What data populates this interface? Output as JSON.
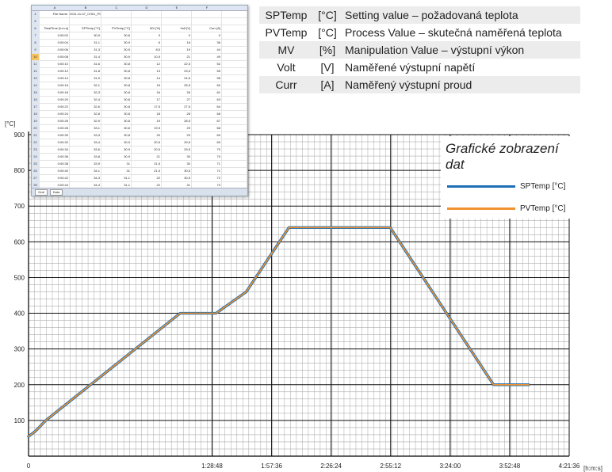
{
  "spreadsheet": {
    "file_label": "File Name:",
    "file_name": "2011-11-07_CH01_P02",
    "columns": [
      "A",
      "B",
      "C",
      "D",
      "E",
      "F"
    ],
    "headers": [
      "RealTime [h:m:s]",
      "SPTemp [°C]",
      "PVTemp [°C]",
      "MV [%]",
      "Volt [V]",
      "Curr [A]"
    ],
    "rows": [
      [
        "0:00:02",
        "30,9",
        "30,8",
        "3",
        "0",
        "0"
      ],
      [
        "0:00:04",
        "31,1",
        "30,9",
        "6",
        "16",
        "36"
      ],
      [
        "0:00:06",
        "31,3",
        "30,9",
        "8,5",
        "19",
        "44"
      ],
      [
        "0:00:08",
        "31,4",
        "30,9",
        "10,5",
        "21",
        "49"
      ],
      [
        "0:00:10",
        "31,6",
        "30,8",
        "12",
        "22,5",
        "52"
      ],
      [
        "0:00:12",
        "31,8",
        "30,8",
        "13",
        "23,5",
        "55"
      ],
      [
        "0:00:14",
        "31,9",
        "30,8",
        "14",
        "24,5",
        "58"
      ],
      [
        "0:00:16",
        "32,1",
        "30,8",
        "15",
        "25,5",
        "60"
      ],
      [
        "0:00:18",
        "32,3",
        "30,8",
        "16",
        "26",
        "61"
      ],
      [
        "0:00:20",
        "32,4",
        "30,8",
        "17",
        "27",
        "63"
      ],
      [
        "0:00:22",
        "32,6",
        "30,8",
        "17,5",
        "27,5",
        "64"
      ],
      [
        "0:00:24",
        "32,8",
        "30,8",
        "18",
        "28",
        "66"
      ],
      [
        "0:00:26",
        "32,9",
        "30,8",
        "19",
        "28,5",
        "67"
      ],
      [
        "0:00:28",
        "33,1",
        "30,8",
        "19,5",
        "29",
        "68"
      ],
      [
        "0:00:30",
        "33,3",
        "30,8",
        "20",
        "29",
        "69"
      ],
      [
        "0:00:32",
        "33,4",
        "30,9",
        "20,5",
        "29,5",
        "69"
      ],
      [
        "0:00:34",
        "33,6",
        "30,9",
        "20,5",
        "29,5",
        "70"
      ],
      [
        "0:00:36",
        "33,8",
        "30,9",
        "21",
        "30",
        "70"
      ],
      [
        "0:00:38",
        "33,9",
        "31",
        "21,5",
        "30",
        "71"
      ],
      [
        "0:00:40",
        "34,1",
        "31",
        "21,5",
        "30,5",
        "71"
      ],
      [
        "0:00:42",
        "34,3",
        "31,1",
        "22",
        "30,5",
        "72"
      ],
      [
        "0:00:44",
        "34,4",
        "31,1",
        "22",
        "31",
        "73"
      ]
    ],
    "tabs": [
      "Graf",
      "Data"
    ]
  },
  "variables": [
    {
      "name": "SPTemp",
      "unit": "[°C]",
      "desc": "Setting value – požadovaná teplota"
    },
    {
      "name": "PVTemp",
      "unit": "[°C]",
      "desc": "Process Value – skutečná naměřená teplota"
    },
    {
      "name": "MV",
      "unit": "[%]",
      "desc": "Manipulation Value – výstupní výkon"
    },
    {
      "name": "Volt",
      "unit": "[V]",
      "desc": "Naměřené výstupní napětí"
    },
    {
      "name": "Curr",
      "unit": "[A]",
      "desc": "Naměřený výstupní proud"
    }
  ],
  "chart_data": {
    "type": "line",
    "title": "Grafické zobrazení dat",
    "ylabel": "[°C]",
    "xlabel": "[h:m:s]",
    "ylim": [
      0,
      900
    ],
    "xlim_seconds": [
      0,
      15696
    ],
    "y_ticks": [
      100,
      200,
      300,
      400,
      500,
      600,
      700,
      800,
      900
    ],
    "x_ticks": [
      {
        "label": "0",
        "seconds": 0
      },
      {
        "label": "1:28:48",
        "seconds": 5328
      },
      {
        "label": "1:57:36",
        "seconds": 7056
      },
      {
        "label": "2:26:24",
        "seconds": 8784
      },
      {
        "label": "2:55:12",
        "seconds": 10512
      },
      {
        "label": "3:24:00",
        "seconds": 12240
      },
      {
        "label": "3:52:48",
        "seconds": 13968
      },
      {
        "label": "4:21:36",
        "seconds": 15696
      }
    ],
    "grid": true,
    "legend_position": "top-right",
    "series": [
      {
        "name": "SPTemp [°C]",
        "color": "#1f6fb5",
        "x": [
          0,
          200,
          500,
          4400,
          5440,
          6320,
          7560,
          10500,
          13500,
          14520
        ],
        "y": [
          55,
          70,
          100,
          400,
          400,
          460,
          640,
          640,
          200,
          200
        ]
      },
      {
        "name": "PVTemp [°C]",
        "color": "#f0922e",
        "x": [
          0,
          200,
          500,
          4400,
          5440,
          6320,
          7560,
          10500,
          13500,
          14520
        ],
        "y": [
          55,
          70,
          100,
          400,
          400,
          460,
          640,
          640,
          200,
          200
        ]
      }
    ]
  }
}
